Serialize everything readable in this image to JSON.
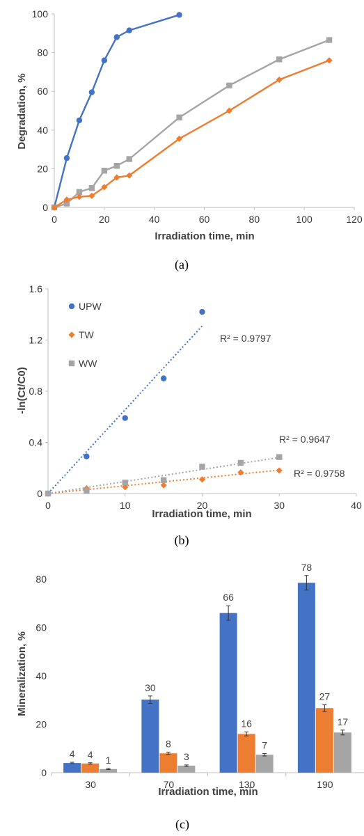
{
  "chart_data": [
    {
      "type": "line",
      "panel_label": "(a)",
      "xlabel": "Irradiation time, min",
      "ylabel": "Degradation, %",
      "xlim": [
        0,
        120
      ],
      "ylim": [
        0,
        100
      ],
      "xticks": [
        "0",
        "20",
        "40",
        "60",
        "80",
        "100",
        "120"
      ],
      "yticks": [
        "0",
        "20",
        "40",
        "60",
        "80",
        "100"
      ],
      "grid": false,
      "series": [
        {
          "color": "#4472C4",
          "marker": "circle",
          "x": [
            0,
            5,
            10,
            15,
            20,
            25,
            30,
            50
          ],
          "y": [
            0,
            25.5,
            45,
            59.5,
            76,
            88,
            91.5,
            99.5
          ]
        },
        {
          "color": "#A5A5A5",
          "marker": "square",
          "x": [
            0,
            5,
            10,
            15,
            20,
            25,
            30,
            50,
            70,
            90,
            110
          ],
          "y": [
            0,
            2,
            8,
            10,
            19,
            21.5,
            25,
            46.5,
            63,
            76.5,
            86.5
          ]
        },
        {
          "color": "#ED7D31",
          "marker": "diamond",
          "x": [
            0,
            5,
            10,
            15,
            20,
            25,
            30,
            50,
            70,
            90,
            110
          ],
          "y": [
            0,
            4,
            5.5,
            6,
            10.5,
            15.5,
            16.5,
            35.5,
            50,
            66,
            76
          ]
        }
      ]
    },
    {
      "type": "scatter",
      "panel_label": "(b)",
      "xlabel": "Irradiation time, min",
      "ylabel": "-ln(Ct/C0)",
      "xlim": [
        0,
        40
      ],
      "ylim": [
        0,
        1.6
      ],
      "xticks": [
        "0",
        "10",
        "20",
        "30",
        "40"
      ],
      "yticks": [
        "0",
        "0.4",
        "0.8",
        "1.2",
        "1.6"
      ],
      "grid": false,
      "legend_position": "top-left",
      "series": [
        {
          "name": "UPW",
          "color": "#4472C4",
          "marker": "circle",
          "x": [
            0,
            5,
            10,
            15,
            20
          ],
          "y": [
            0,
            0.29,
            0.59,
            0.9,
            1.42
          ],
          "trendline": {
            "slope": 0.0655,
            "r2_label": "R² = 0.9797"
          }
        },
        {
          "name": "TW",
          "color": "#ED7D31",
          "marker": "diamond",
          "x": [
            0,
            5,
            10,
            15,
            20,
            25,
            30
          ],
          "y": [
            0,
            0.04,
            0.05,
            0.065,
            0.11,
            0.165,
            0.18
          ],
          "trendline": {
            "slope": 0.0061,
            "r2_label": "R² = 0.9647"
          }
        },
        {
          "name": "WW",
          "color": "#A5A5A5",
          "marker": "square",
          "x": [
            0,
            5,
            10,
            15,
            20,
            25,
            30
          ],
          "y": [
            0,
            0.02,
            0.085,
            0.105,
            0.21,
            0.24,
            0.285
          ],
          "trendline": {
            "slope": 0.0094,
            "r2_label": "R² = 0.9758"
          }
        }
      ]
    },
    {
      "type": "bar",
      "panel_label": "(c)",
      "xlabel": "Irradiation time, min",
      "ylabel": "Mineralization, %",
      "ylim": [
        0,
        80
      ],
      "yticks": [
        "0",
        "20",
        "40",
        "60",
        "80"
      ],
      "categories": [
        "30",
        "70",
        "130",
        "190"
      ],
      "grid": false,
      "series": [
        {
          "color": "#4472C4",
          "values": [
            4,
            30.2,
            66,
            78.5
          ],
          "errors": [
            0.3,
            1.5,
            3,
            3
          ],
          "labels": [
            "4",
            "30",
            "66",
            "78"
          ]
        },
        {
          "color": "#ED7D31",
          "values": [
            3.8,
            8,
            16,
            26.7
          ],
          "errors": [
            0.3,
            0.5,
            0.8,
            1.4
          ],
          "labels": [
            "4",
            "8",
            "16",
            "27"
          ]
        },
        {
          "color": "#A5A5A5",
          "values": [
            1.5,
            2.9,
            7.4,
            16.6
          ],
          "errors": [
            0.2,
            0.3,
            0.5,
            1
          ],
          "labels": [
            "1",
            "3",
            "7",
            "17"
          ]
        }
      ]
    }
  ]
}
